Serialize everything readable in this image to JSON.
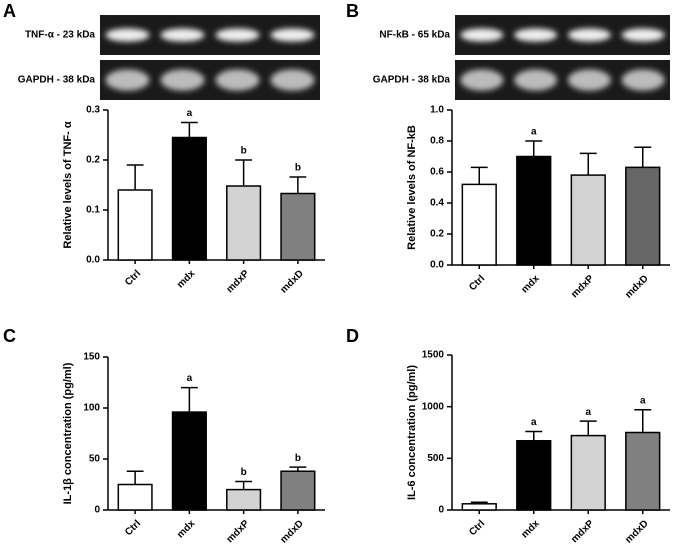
{
  "chart_data": [
    {
      "type": "bar",
      "panel": "A",
      "ylabel": "Relative levels of TNF- α",
      "blots": [
        "TNF-α - 23 kDa",
        "GAPDH - 38 kDa"
      ],
      "categories": [
        "Ctrl",
        "mdx",
        "mdxP",
        "mdxD"
      ],
      "values": [
        0.14,
        0.245,
        0.148,
        0.133
      ],
      "errors": [
        0.05,
        0.03,
        0.052,
        0.033
      ],
      "annotations": [
        null,
        "a",
        "b",
        "b"
      ],
      "colors": [
        "#ffffff",
        "#000000",
        "#d3d3d3",
        "#808080"
      ],
      "ylim": [
        0,
        0.3
      ],
      "yticks": [
        {
          "value": 0,
          "label": "0.0"
        },
        0.1,
        0.2,
        0.3
      ]
    },
    {
      "type": "bar",
      "panel": "B",
      "ylabel": "Relative levels of NF-kB",
      "blots": [
        "NF-kB - 65 kDa",
        "GAPDH - 38 kDa"
      ],
      "categories": [
        "Ctrl",
        "mdx",
        "mdxP",
        "mdxD"
      ],
      "values": [
        0.52,
        0.7,
        0.58,
        0.63
      ],
      "errors": [
        0.11,
        0.1,
        0.14,
        0.13
      ],
      "annotations": [
        null,
        "a",
        null,
        null
      ],
      "colors": [
        "#ffffff",
        "#000000",
        "#d3d3d3",
        "#666666"
      ],
      "ylim": [
        0,
        1.0
      ],
      "yticks": [
        {
          "value": 0,
          "label": "0.0"
        },
        0.2,
        0.4,
        0.6,
        0.8,
        {
          "value": 1,
          "label": "1.0"
        }
      ]
    },
    {
      "type": "bar",
      "panel": "C",
      "ylabel": "IL-1β concentration (pg/ml)",
      "categories": [
        "Ctrl",
        "mdx",
        "mdxP",
        "mdxD"
      ],
      "values": [
        25,
        96,
        20,
        38
      ],
      "errors": [
        13,
        24,
        8,
        4
      ],
      "annotations": [
        null,
        "a",
        "b",
        "b"
      ],
      "colors": [
        "#ffffff",
        "#000000",
        "#d3d3d3",
        "#808080"
      ],
      "ylim": [
        0,
        150
      ],
      "yticks": [
        0,
        50,
        100,
        150
      ]
    },
    {
      "type": "bar",
      "panel": "D",
      "ylabel": "IL-6 concentration (pg/ml)",
      "categories": [
        "Ctrl",
        "mdx",
        "mdxP",
        "mdxD"
      ],
      "values": [
        60,
        670,
        720,
        750
      ],
      "errors": [
        15,
        90,
        140,
        220
      ],
      "annotations": [
        null,
        "a",
        "a",
        "a"
      ],
      "colors": [
        "#ffffff",
        "#000000",
        "#d3d3d3",
        "#808080"
      ],
      "ylim": [
        0,
        1500
      ],
      "yticks": [
        0,
        500,
        1000,
        1500
      ]
    }
  ]
}
